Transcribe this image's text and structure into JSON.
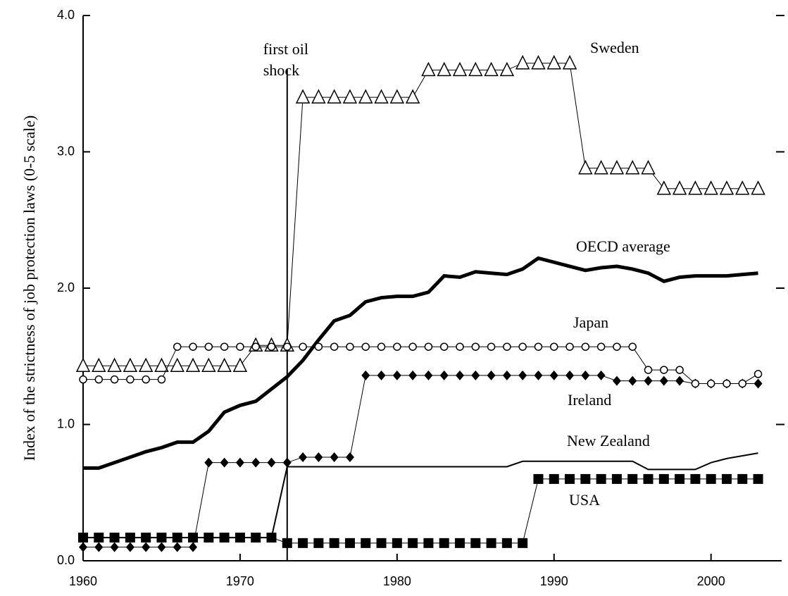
{
  "chart_data": {
    "type": "line",
    "y_label": "Index of the strictness of job protection laws (0-5 scale)",
    "x": [
      1960,
      1961,
      1962,
      1963,
      1964,
      1965,
      1966,
      1967,
      1968,
      1969,
      1970,
      1971,
      1972,
      1973,
      1974,
      1975,
      1976,
      1977,
      1978,
      1979,
      1980,
      1981,
      1982,
      1983,
      1984,
      1985,
      1986,
      1987,
      1988,
      1989,
      1990,
      1991,
      1992,
      1993,
      1994,
      1995,
      1996,
      1997,
      1998,
      1999,
      2000,
      2001,
      2002,
      2003
    ],
    "xlim": [
      1960,
      2004.5
    ],
    "xticks": [
      1960,
      1970,
      1980,
      1990,
      2000
    ],
    "ylim": [
      0,
      4
    ],
    "yticks": [
      {
        "value": 0,
        "label": "0.0"
      },
      {
        "value": 1,
        "label": "1.0"
      },
      {
        "value": 2,
        "label": "2.0"
      },
      {
        "value": 3,
        "label": "3.0"
      },
      {
        "value": 4,
        "label": "4.0"
      }
    ],
    "annotations": [
      {
        "lines": [
          "first oil",
          "shock"
        ],
        "x": 1973
      }
    ],
    "series": [
      {
        "name": "Sweden",
        "color": "#000000",
        "marker": "triangle",
        "linewidth": 1,
        "values": [
          1.43,
          1.43,
          1.43,
          1.43,
          1.43,
          1.43,
          1.43,
          1.43,
          1.43,
          1.43,
          1.43,
          1.58,
          1.58,
          1.58,
          3.4,
          3.4,
          3.4,
          3.4,
          3.4,
          3.4,
          3.4,
          3.4,
          3.6,
          3.6,
          3.6,
          3.6,
          3.6,
          3.6,
          3.65,
          3.65,
          3.65,
          3.65,
          2.88,
          2.88,
          2.88,
          2.88,
          2.88,
          2.73,
          2.73,
          2.73,
          2.73,
          2.73,
          2.73,
          2.73
        ]
      },
      {
        "name": "OECD average",
        "color": "#000000",
        "marker": "none",
        "linewidth": 5,
        "values": [
          0.68,
          0.68,
          0.72,
          0.76,
          0.8,
          0.83,
          0.87,
          0.87,
          0.95,
          1.09,
          1.14,
          1.17,
          1.26,
          1.35,
          1.47,
          1.62,
          1.76,
          1.8,
          1.9,
          1.93,
          1.94,
          1.94,
          1.97,
          2.09,
          2.08,
          2.12,
          2.11,
          2.1,
          2.14,
          2.22,
          2.19,
          2.16,
          2.13,
          2.15,
          2.16,
          2.14,
          2.11,
          2.05,
          2.08,
          2.09,
          2.09,
          2.09,
          2.1,
          2.11
        ]
      },
      {
        "name": "Ireland",
        "color": "#000000",
        "marker": "diamond",
        "linewidth": 1,
        "values": [
          0.1,
          0.1,
          0.1,
          0.1,
          0.1,
          0.1,
          0.1,
          0.1,
          0.72,
          0.72,
          0.72,
          0.72,
          0.72,
          0.72,
          0.76,
          0.76,
          0.76,
          0.76,
          1.36,
          1.36,
          1.36,
          1.36,
          1.36,
          1.36,
          1.36,
          1.36,
          1.36,
          1.36,
          1.36,
          1.36,
          1.36,
          1.36,
          1.36,
          1.36,
          1.32,
          1.32,
          1.32,
          1.32,
          1.32,
          1.3,
          1.3,
          1.3,
          1.3,
          1.3
        ]
      },
      {
        "name": "Japan",
        "color": "#000000",
        "marker": "circle",
        "linewidth": 1,
        "values": [
          1.33,
          1.33,
          1.33,
          1.33,
          1.33,
          1.33,
          1.57,
          1.57,
          1.57,
          1.57,
          1.57,
          1.57,
          1.57,
          1.57,
          1.57,
          1.57,
          1.57,
          1.57,
          1.57,
          1.57,
          1.57,
          1.57,
          1.57,
          1.57,
          1.57,
          1.57,
          1.57,
          1.57,
          1.57,
          1.57,
          1.57,
          1.57,
          1.57,
          1.57,
          1.57,
          1.57,
          1.4,
          1.4,
          1.4,
          1.3,
          1.3,
          1.3,
          1.3,
          1.37
        ]
      },
      {
        "name": "New Zealand",
        "color": "#000000",
        "marker": "none",
        "linewidth": 2,
        "values": [
          0.17,
          0.17,
          0.17,
          0.17,
          0.17,
          0.17,
          0.17,
          0.17,
          0.17,
          0.17,
          0.17,
          0.17,
          0.17,
          0.69,
          0.69,
          0.69,
          0.69,
          0.69,
          0.69,
          0.69,
          0.69,
          0.69,
          0.69,
          0.69,
          0.69,
          0.69,
          0.69,
          0.69,
          0.73,
          0.73,
          0.73,
          0.73,
          0.73,
          0.73,
          0.73,
          0.73,
          0.67,
          0.67,
          0.67,
          0.67,
          0.72,
          0.75,
          0.77,
          0.79
        ]
      },
      {
        "name": "USA",
        "color": "#000000",
        "marker": "square",
        "linewidth": 1,
        "values": [
          0.17,
          0.17,
          0.17,
          0.17,
          0.17,
          0.17,
          0.17,
          0.17,
          0.17,
          0.17,
          0.17,
          0.17,
          0.17,
          0.13,
          0.13,
          0.13,
          0.13,
          0.13,
          0.13,
          0.13,
          0.13,
          0.13,
          0.13,
          0.13,
          0.13,
          0.13,
          0.13,
          0.13,
          0.13,
          0.6,
          0.6,
          0.6,
          0.6,
          0.6,
          0.6,
          0.6,
          0.6,
          0.6,
          0.6,
          0.6,
          0.6,
          0.6,
          0.6,
          0.6
        ]
      }
    ]
  }
}
